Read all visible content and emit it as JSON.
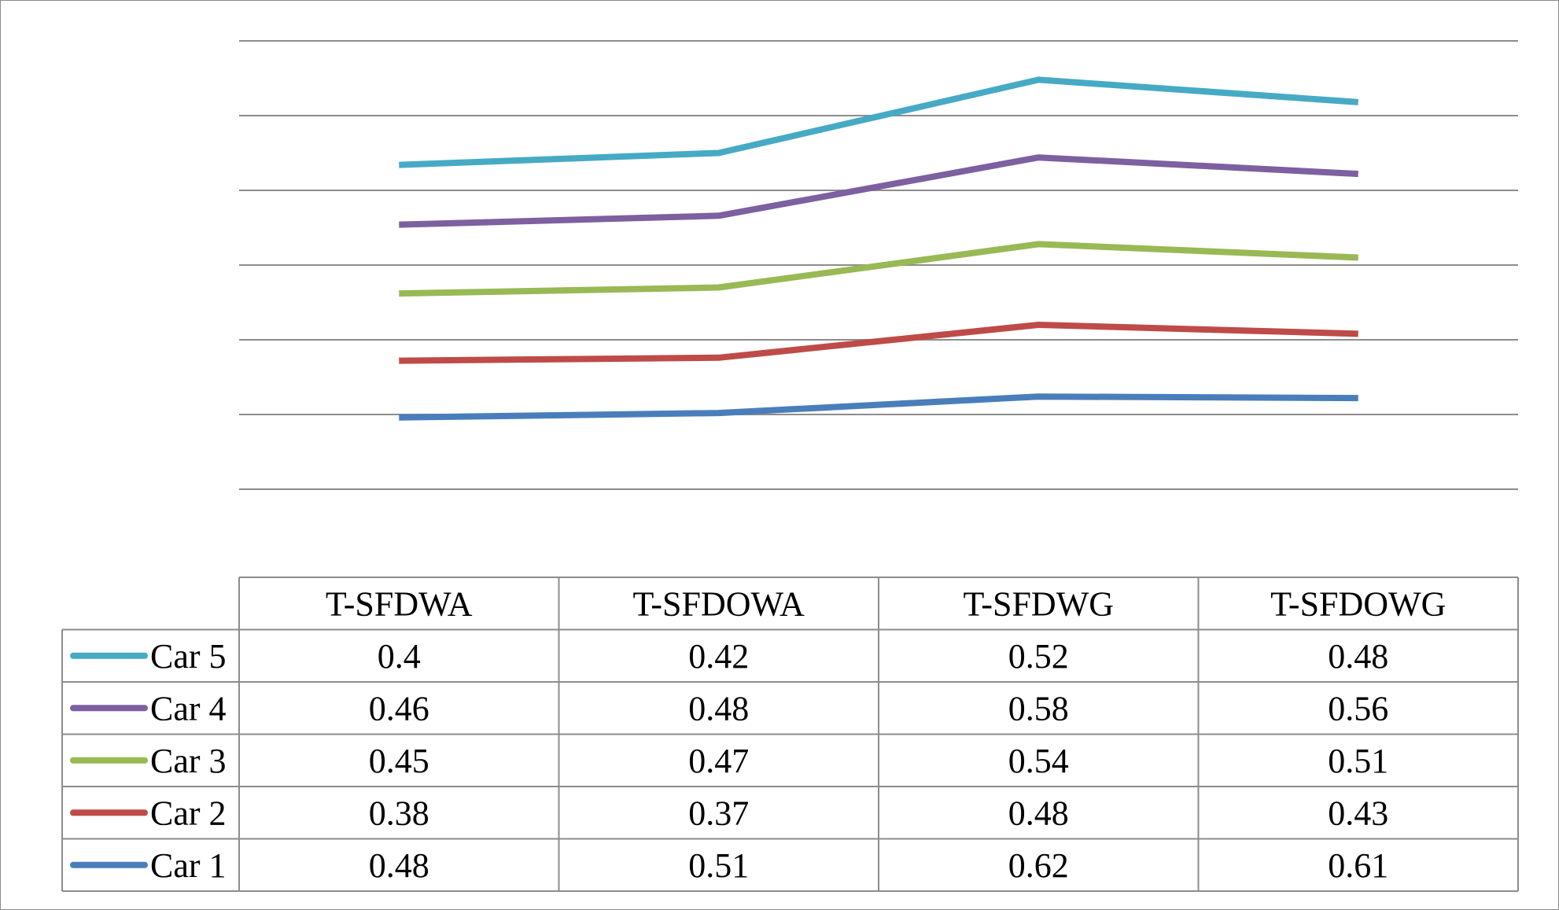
{
  "chart_data": {
    "type": "line",
    "stacked": true,
    "categories": [
      "T-SFDWA",
      "T-SFDOWA",
      "T-SFDWG",
      "T-SFDOWG"
    ],
    "series": [
      {
        "name": "Car 1",
        "color": "#4a7ebb",
        "values": [
          0.48,
          0.51,
          0.62,
          0.61
        ]
      },
      {
        "name": "Car 2",
        "color": "#be4b48",
        "values": [
          0.38,
          0.37,
          0.48,
          0.43
        ]
      },
      {
        "name": "Car 3",
        "color": "#98b954",
        "values": [
          0.45,
          0.47,
          0.54,
          0.51
        ]
      },
      {
        "name": "Car 4",
        "color": "#7d60a0",
        "values": [
          0.46,
          0.48,
          0.58,
          0.56
        ]
      },
      {
        "name": "Car 5",
        "color": "#46aac5",
        "values": [
          0.4,
          0.42,
          0.52,
          0.48
        ]
      }
    ],
    "table_row_order": [
      "Car 5",
      "Car 4",
      "Car 3",
      "Car 2",
      "Car 1"
    ],
    "ylim": [
      0,
      3
    ],
    "grid_y_step": 0.5,
    "y_tick_labels_visible": false,
    "legend": "data-table",
    "grid": true
  }
}
